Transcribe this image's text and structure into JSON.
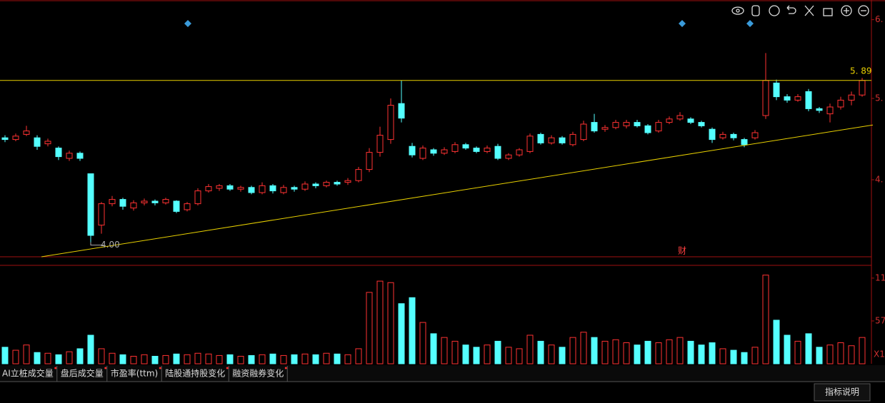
{
  "chart_data": {
    "type": "candlestick",
    "open": [
      5.22,
      5.2,
      5.26,
      5.22,
      5.15,
      5.1,
      4.98,
      5.04,
      4.8,
      4.2,
      4.45,
      4.5,
      4.4,
      4.46,
      4.48,
      4.46,
      4.48,
      4.38,
      4.45,
      4.6,
      4.63,
      4.66,
      4.62,
      4.64,
      4.58,
      4.66,
      4.58,
      4.64,
      4.62,
      4.68,
      4.66,
      4.7,
      4.7,
      4.72,
      4.85,
      5.05,
      5.2,
      5.62,
      5.12,
      4.98,
      5.08,
      5.04,
      5.06,
      5.14,
      5.1,
      5.06,
      5.12,
      4.98,
      5.02,
      5.06,
      5.26,
      5.16,
      5.22,
      5.14,
      5.2,
      5.4,
      5.32,
      5.34,
      5.36,
      5.4,
      5.36,
      5.3,
      5.4,
      5.44,
      5.44,
      5.4,
      5.32,
      5.22,
      5.26,
      5.2,
      5.22,
      5.48,
      5.86,
      5.7,
      5.66,
      5.76,
      5.56,
      5.5,
      5.58,
      5.66,
      5.72
    ],
    "high": [
      5.25,
      5.27,
      5.36,
      5.25,
      5.21,
      5.12,
      5.07,
      5.06,
      4.8,
      4.47,
      4.54,
      4.52,
      4.49,
      4.51,
      4.5,
      4.52,
      4.49,
      4.47,
      4.63,
      4.68,
      4.68,
      4.68,
      4.66,
      4.66,
      4.7,
      4.68,
      4.67,
      4.66,
      4.71,
      4.7,
      4.72,
      4.72,
      4.75,
      4.88,
      5.1,
      5.35,
      5.68,
      5.89,
      5.16,
      5.13,
      5.1,
      5.11,
      5.17,
      5.16,
      5.12,
      5.13,
      5.15,
      5.04,
      5.1,
      5.27,
      5.28,
      5.25,
      5.24,
      5.29,
      5.42,
      5.5,
      5.37,
      5.43,
      5.43,
      5.43,
      5.38,
      5.43,
      5.47,
      5.52,
      5.46,
      5.42,
      5.34,
      5.29,
      5.28,
      5.22,
      5.31,
      6.21,
      5.9,
      5.73,
      5.73,
      5.79,
      5.58,
      5.62,
      5.7,
      5.76,
      5.92
    ],
    "low": [
      5.17,
      5.18,
      5.24,
      5.08,
      5.12,
      4.96,
      4.95,
      4.95,
      4.0,
      4.1,
      4.42,
      4.38,
      4.37,
      4.43,
      4.43,
      4.44,
      4.34,
      4.36,
      4.43,
      4.58,
      4.6,
      4.6,
      4.59,
      4.56,
      4.56,
      4.57,
      4.56,
      4.59,
      4.6,
      4.63,
      4.64,
      4.66,
      4.67,
      4.7,
      4.82,
      5.0,
      5.15,
      5.4,
      4.99,
      4.96,
      5.01,
      5.02,
      5.04,
      5.08,
      5.04,
      5.04,
      4.96,
      4.96,
      5.0,
      5.04,
      5.14,
      5.14,
      5.14,
      5.12,
      5.18,
      5.28,
      5.29,
      5.32,
      5.33,
      5.34,
      5.26,
      5.28,
      5.38,
      5.42,
      5.38,
      5.34,
      5.16,
      5.2,
      5.19,
      5.11,
      5.2,
      5.44,
      5.66,
      5.63,
      5.64,
      5.53,
      5.51,
      5.4,
      5.55,
      5.6,
      5.7
    ],
    "close": [
      5.2,
      5.24,
      5.3,
      5.12,
      5.18,
      5.0,
      5.04,
      4.98,
      4.08,
      4.45,
      4.5,
      4.42,
      4.46,
      4.48,
      4.46,
      4.5,
      4.36,
      4.45,
      4.6,
      4.65,
      4.66,
      4.62,
      4.64,
      4.58,
      4.66,
      4.6,
      4.64,
      4.62,
      4.68,
      4.66,
      4.7,
      4.68,
      4.72,
      4.85,
      5.05,
      5.25,
      5.6,
      5.45,
      5.02,
      5.1,
      5.04,
      5.08,
      5.14,
      5.1,
      5.06,
      5.1,
      4.98,
      5.02,
      5.08,
      5.24,
      5.16,
      5.22,
      5.16,
      5.26,
      5.38,
      5.3,
      5.34,
      5.4,
      5.4,
      5.36,
      5.28,
      5.4,
      5.44,
      5.48,
      5.4,
      5.36,
      5.2,
      5.26,
      5.22,
      5.14,
      5.28,
      5.89,
      5.7,
      5.66,
      5.7,
      5.56,
      5.54,
      5.58,
      5.66,
      5.72,
      5.89
    ],
    "volume": [
      22,
      18,
      25,
      15,
      14,
      12,
      16,
      20,
      38,
      20,
      14,
      12,
      10,
      12,
      10,
      11,
      13,
      12,
      14,
      13,
      11,
      12,
      10,
      11,
      12,
      13,
      11,
      12,
      13,
      12,
      14,
      13,
      12,
      20,
      95,
      110,
      108,
      80,
      88,
      55,
      40,
      35,
      30,
      25,
      22,
      25,
      30,
      22,
      20,
      38,
      30,
      25,
      22,
      35,
      42,
      35,
      30,
      32,
      28,
      25,
      30,
      28,
      32,
      35,
      30,
      25,
      28,
      20,
      18,
      15,
      22,
      118,
      58,
      38,
      30,
      40,
      22,
      25,
      28,
      24,
      35
    ],
    "up_color": "#ff3232",
    "down_color": "#54ffff",
    "ylim": [
      3.83,
      6.83
    ],
    "yticks": [
      {
        "value": 6.6,
        "label": "6."
      },
      {
        "value": 5.68,
        "label": "5."
      },
      {
        "value": 4.73,
        "label": "4."
      }
    ],
    "vol_ylim": [
      0,
      131
    ],
    "vol_yticks": [
      {
        "value": 114,
        "label": "11"
      },
      {
        "value": 57,
        "label": "57"
      }
    ],
    "vol_unit": "X1",
    "hline": 5.89,
    "hline_label": "5. 89",
    "low_label": "4.00",
    "trendline": [
      [
        3.4,
        3.83
      ],
      [
        81,
        5.37
      ]
    ],
    "event_label": "财"
  },
  "tabs": [
    "AI立桩成交量",
    "盘后成交量",
    "市盈率(ttm)",
    "陆股通持股变化",
    "融资融券变化"
  ],
  "button": "指标说明"
}
